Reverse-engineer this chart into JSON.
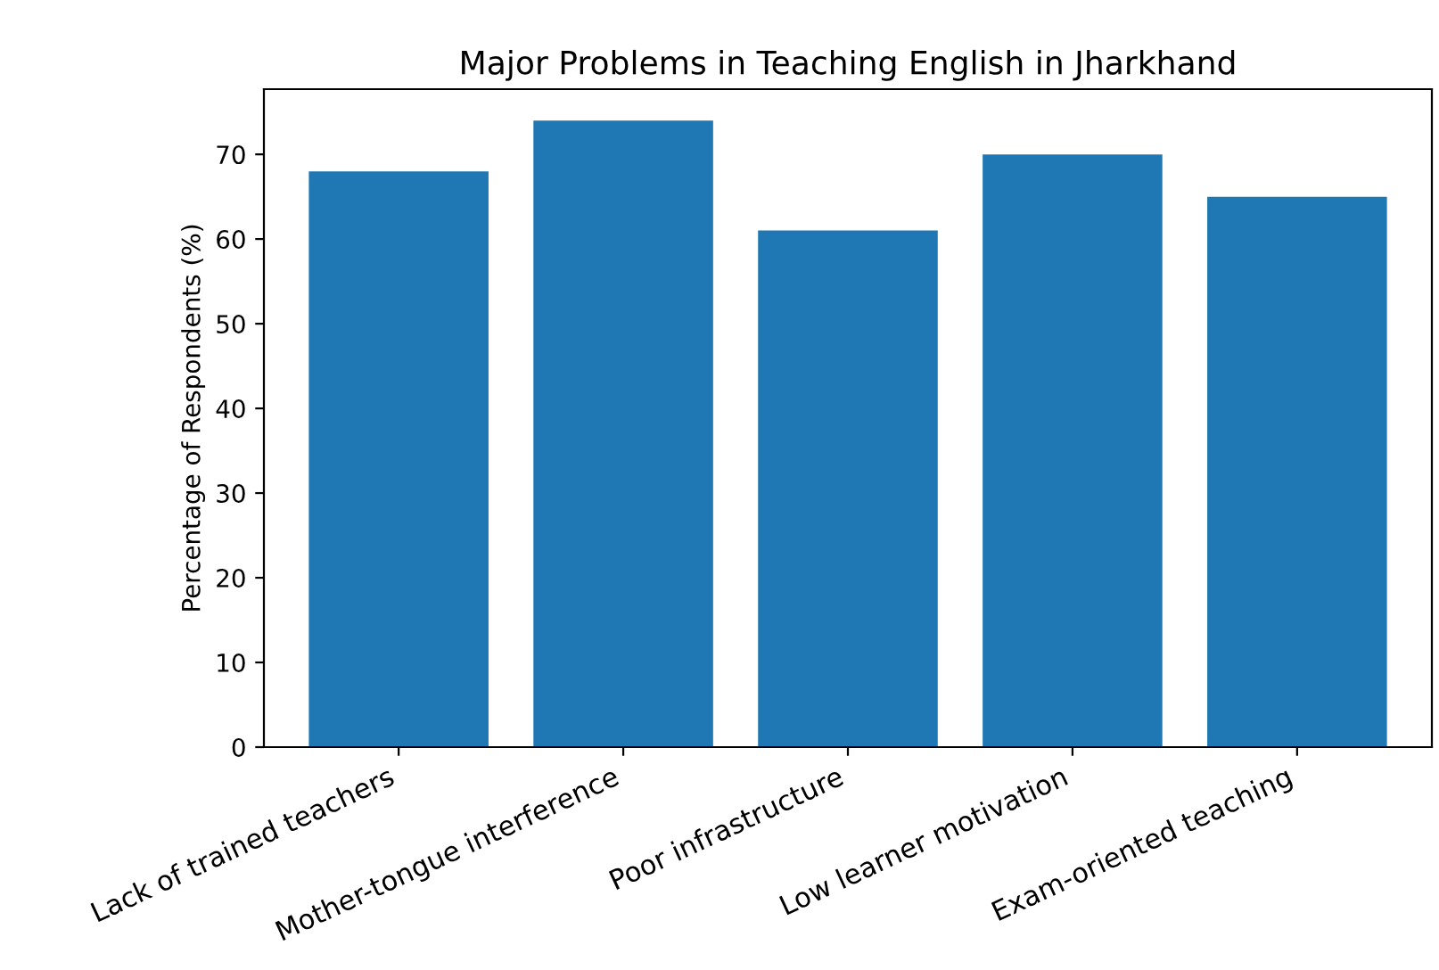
{
  "chart_data": {
    "type": "bar",
    "title": "Major Problems in Teaching English in Jharkhand",
    "ylabel": "Percentage of Respondents (%)",
    "categories": [
      "Lack of trained teachers",
      "Mother-tongue interference",
      "Poor infrastructure",
      "Low learner motivation",
      "Exam-oriented teaching"
    ],
    "values": [
      68,
      74,
      61,
      70,
      65
    ],
    "color": "#1f77b4",
    "ylim": [
      0,
      77.7
    ],
    "yticks": [
      0,
      10,
      20,
      30,
      40,
      50,
      60,
      70
    ],
    "grid": false
  }
}
